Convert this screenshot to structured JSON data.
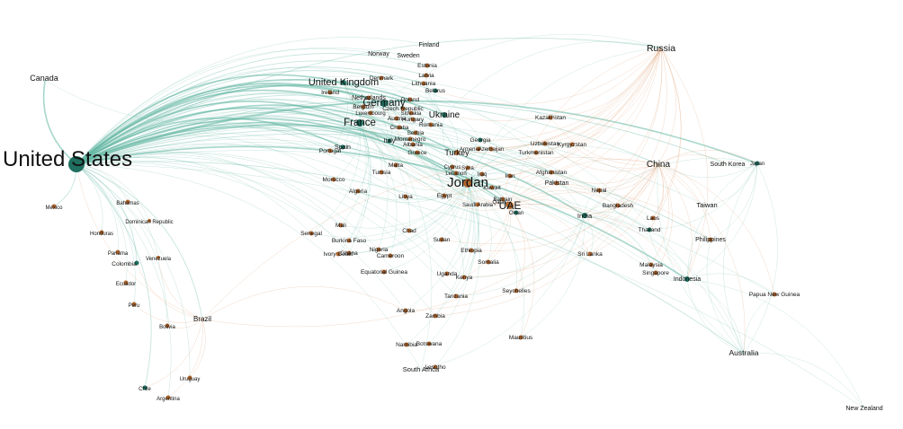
{
  "colors": {
    "background": "#ffffff",
    "teal_node": "#1f6f60",
    "orange_node": "#b0672f",
    "teal_edge": "#5fb5a0",
    "orange_edge": "#e0a178"
  },
  "nodes": [
    {
      "id": "united-states",
      "label": "United States",
      "color": "teal"
    },
    {
      "id": "canada",
      "label": "Canada",
      "color": "teal"
    },
    {
      "id": "mexico",
      "label": "Mexico",
      "color": "orange"
    },
    {
      "id": "bahamas",
      "label": "Bahamas",
      "color": "orange"
    },
    {
      "id": "dominican-republic",
      "label": "Dominican Republic",
      "color": "orange"
    },
    {
      "id": "honduras",
      "label": "Honduras",
      "color": "orange"
    },
    {
      "id": "panama",
      "label": "Panama",
      "color": "orange"
    },
    {
      "id": "venezuela",
      "label": "Venezuela",
      "color": "orange"
    },
    {
      "id": "colombia",
      "label": "Colombia",
      "color": "teal"
    },
    {
      "id": "ecuador",
      "label": "Ecuador",
      "color": "orange"
    },
    {
      "id": "peru",
      "label": "Peru",
      "color": "orange"
    },
    {
      "id": "bolivia",
      "label": "Bolivia",
      "color": "orange"
    },
    {
      "id": "brazil",
      "label": "Brazil",
      "color": "orange"
    },
    {
      "id": "chile",
      "label": "Chile",
      "color": "teal"
    },
    {
      "id": "uruguay",
      "label": "Uruguay",
      "color": "orange"
    },
    {
      "id": "argentina",
      "label": "Argentina",
      "color": "orange"
    },
    {
      "id": "finland",
      "label": "Finland",
      "color": "orange"
    },
    {
      "id": "norway",
      "label": "Norway",
      "color": "orange"
    },
    {
      "id": "sweden",
      "label": "Sweden",
      "color": "orange"
    },
    {
      "id": "estonia",
      "label": "Estonia",
      "color": "orange"
    },
    {
      "id": "latvia",
      "label": "Latvia",
      "color": "orange"
    },
    {
      "id": "lithuania",
      "label": "Lithuania",
      "color": "orange"
    },
    {
      "id": "belarus",
      "label": "Belarus",
      "color": "teal"
    },
    {
      "id": "denmark",
      "label": "Denmark",
      "color": "orange"
    },
    {
      "id": "united-kingdom",
      "label": "United Kingdom",
      "color": "teal"
    },
    {
      "id": "ireland",
      "label": "Ireland",
      "color": "orange"
    },
    {
      "id": "netherlands",
      "label": "Netherlands",
      "color": "orange"
    },
    {
      "id": "germany",
      "label": "Germany",
      "color": "teal"
    },
    {
      "id": "poland",
      "label": "Poland",
      "color": "orange"
    },
    {
      "id": "belgium",
      "label": "Belgium",
      "color": "orange"
    },
    {
      "id": "czech-republic",
      "label": "Czech Republic",
      "color": "orange"
    },
    {
      "id": "luxembourg",
      "label": "Luxembourg",
      "color": "orange"
    },
    {
      "id": "slovakia",
      "label": "Slovakia",
      "color": "orange"
    },
    {
      "id": "ukraine",
      "label": "Ukraine",
      "color": "teal"
    },
    {
      "id": "austria",
      "label": "Austria",
      "color": "orange"
    },
    {
      "id": "hungary",
      "label": "Hungary",
      "color": "orange"
    },
    {
      "id": "romania",
      "label": "Romania",
      "color": "orange"
    },
    {
      "id": "france",
      "label": "France",
      "color": "teal"
    },
    {
      "id": "croatia",
      "label": "Croatia",
      "color": "orange"
    },
    {
      "id": "serbia",
      "label": "Serbia",
      "color": "orange"
    },
    {
      "id": "montenegro",
      "label": "Montenegro",
      "color": "orange"
    },
    {
      "id": "albania",
      "label": "Albania",
      "color": "orange"
    },
    {
      "id": "italy",
      "label": "Italy",
      "color": "teal"
    },
    {
      "id": "spain",
      "label": "Spain",
      "color": "teal"
    },
    {
      "id": "portugal",
      "label": "Portugal",
      "color": "orange"
    },
    {
      "id": "greece",
      "label": "Greece",
      "color": "orange"
    },
    {
      "id": "kazakhstan",
      "label": "Kazakhstan",
      "color": "orange"
    },
    {
      "id": "georgia",
      "label": "Georgia",
      "color": "teal"
    },
    {
      "id": "armenia",
      "label": "Armenia",
      "color": "orange"
    },
    {
      "id": "azerbaijan",
      "label": "Azerbaijan",
      "color": "orange"
    },
    {
      "id": "uzbekistan",
      "label": "Uzbekistan",
      "color": "orange"
    },
    {
      "id": "kyrgyzstan",
      "label": "Kyrgyzstan",
      "color": "orange"
    },
    {
      "id": "turkmenistan",
      "label": "Turkmenistan",
      "color": "orange"
    },
    {
      "id": "turkey",
      "label": "Turkey",
      "color": "orange"
    },
    {
      "id": "russia",
      "label": "Russia",
      "color": "orange"
    },
    {
      "id": "malta",
      "label": "Malta",
      "color": "orange"
    },
    {
      "id": "tunisia",
      "label": "Tunisia",
      "color": "orange"
    },
    {
      "id": "cyprus",
      "label": "Cyprus",
      "color": "orange"
    },
    {
      "id": "syria",
      "label": "Syria",
      "color": "orange"
    },
    {
      "id": "lebanon",
      "label": "Lebanon",
      "color": "orange"
    },
    {
      "id": "iraq",
      "label": "Iraq",
      "color": "orange"
    },
    {
      "id": "iran",
      "label": "Iran",
      "color": "orange"
    },
    {
      "id": "afghanistan",
      "label": "Afghanistan",
      "color": "orange"
    },
    {
      "id": "pakistan",
      "label": "Pakistan",
      "color": "orange"
    },
    {
      "id": "china",
      "label": "China",
      "color": "orange"
    },
    {
      "id": "south-korea",
      "label": "South Korea",
      "color": "orange"
    },
    {
      "id": "japan",
      "label": "Japan",
      "color": "teal"
    },
    {
      "id": "morocco",
      "label": "Morocco",
      "color": "orange"
    },
    {
      "id": "algeria",
      "label": "Algeria",
      "color": "orange"
    },
    {
      "id": "libya",
      "label": "Libya",
      "color": "orange"
    },
    {
      "id": "egypt",
      "label": "Egypt",
      "color": "orange"
    },
    {
      "id": "jordan",
      "label": "Jordan",
      "color": "orange"
    },
    {
      "id": "kuwait",
      "label": "Kuwait",
      "color": "orange"
    },
    {
      "id": "bahrain",
      "label": "Bahrain",
      "color": "orange"
    },
    {
      "id": "saudi-arabia",
      "label": "Saudi Arabia",
      "color": "orange"
    },
    {
      "id": "uae",
      "label": "UAE",
      "color": "orange"
    },
    {
      "id": "qatar",
      "label": "Qatar",
      "color": "orange"
    },
    {
      "id": "oman",
      "label": "Oman",
      "color": "teal"
    },
    {
      "id": "nepal",
      "label": "Nepal",
      "color": "orange"
    },
    {
      "id": "bangladesh",
      "label": "Bangladesh",
      "color": "orange"
    },
    {
      "id": "india",
      "label": "India",
      "color": "teal"
    },
    {
      "id": "laos",
      "label": "Laos",
      "color": "orange"
    },
    {
      "id": "thailand",
      "label": "Thailand",
      "color": "teal"
    },
    {
      "id": "taiwan",
      "label": "Taiwan",
      "color": "orange"
    },
    {
      "id": "philippines",
      "label": "Philippines",
      "color": "orange"
    },
    {
      "id": "mali",
      "label": "Mali",
      "color": "orange"
    },
    {
      "id": "senegal",
      "label": "Senegal",
      "color": "orange"
    },
    {
      "id": "chad",
      "label": "Chad",
      "color": "orange"
    },
    {
      "id": "burkina-faso",
      "label": "Burkina Faso",
      "color": "orange"
    },
    {
      "id": "nigeria",
      "label": "Nigeria",
      "color": "orange"
    },
    {
      "id": "ivory-coast",
      "label": "Ivory Coast",
      "color": "orange"
    },
    {
      "id": "ghana",
      "label": "Ghana",
      "color": "orange"
    },
    {
      "id": "cameroon",
      "label": "Cameroon",
      "color": "orange"
    },
    {
      "id": "sudan",
      "label": "Sudan",
      "color": "orange"
    },
    {
      "id": "ethiopia",
      "label": "Ethiopia",
      "color": "orange"
    },
    {
      "id": "somalia",
      "label": "Somalia",
      "color": "orange"
    },
    {
      "id": "sri-lanka",
      "label": "Sri Lanka",
      "color": "orange"
    },
    {
      "id": "equatorial-guinea",
      "label": "Equatorial Guinea",
      "color": "orange"
    },
    {
      "id": "uganda",
      "label": "Uganda",
      "color": "orange"
    },
    {
      "id": "kenya",
      "label": "Kenya",
      "color": "orange"
    },
    {
      "id": "malaysia",
      "label": "Malaysia",
      "color": "orange"
    },
    {
      "id": "singapore",
      "label": "Singapore",
      "color": "orange"
    },
    {
      "id": "indonesia",
      "label": "Indonesia",
      "color": "teal"
    },
    {
      "id": "seychelles",
      "label": "Seychelles",
      "color": "orange"
    },
    {
      "id": "tanzania",
      "label": "Tanzania",
      "color": "orange"
    },
    {
      "id": "papua-new-guinea",
      "label": "Papua New Guinea",
      "color": "orange"
    },
    {
      "id": "angola",
      "label": "Angola",
      "color": "orange"
    },
    {
      "id": "zambia",
      "label": "Zambia",
      "color": "orange"
    },
    {
      "id": "mauritius",
      "label": "Mauritius",
      "color": "orange"
    },
    {
      "id": "namibia",
      "label": "Namibia",
      "color": "orange"
    },
    {
      "id": "botswana",
      "label": "Botswana",
      "color": "orange"
    },
    {
      "id": "lesotho",
      "label": "Lesotho",
      "color": "orange"
    },
    {
      "id": "south-africa",
      "label": "South Africa",
      "color": "orange"
    },
    {
      "id": "australia",
      "label": "Australia",
      "color": "orange"
    },
    {
      "id": "new-zealand",
      "label": "New Zealand",
      "color": "orange"
    }
  ]
}
